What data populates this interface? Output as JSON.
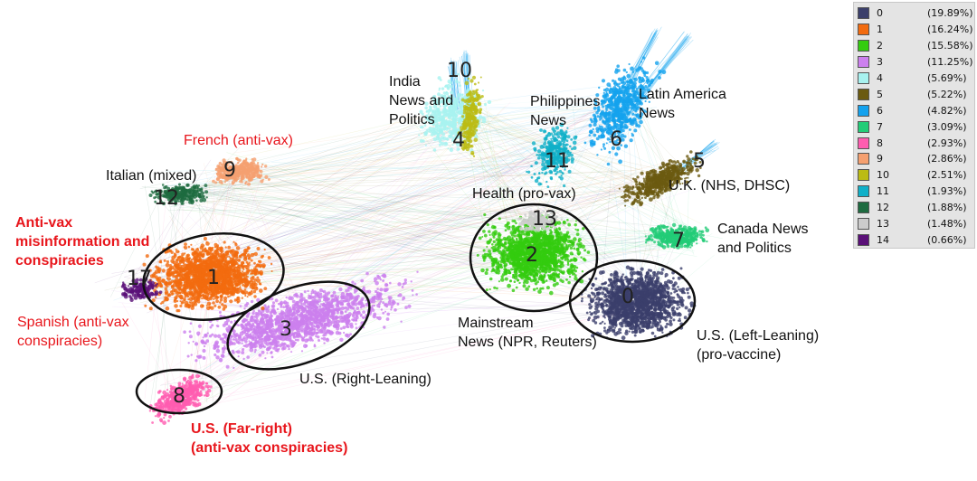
{
  "legend": [
    {
      "key": "0",
      "percent": "(19.89%)",
      "color": "#3b3f6b"
    },
    {
      "key": "1",
      "percent": "(16.24%)",
      "color": "#f26b0f"
    },
    {
      "key": "2",
      "percent": "(15.58%)",
      "color": "#33cc0f"
    },
    {
      "key": "3",
      "percent": "(11.25%)",
      "color": "#cc80ee"
    },
    {
      "key": "4",
      "percent": "(5.69%)",
      "color": "#a8f2f0"
    },
    {
      "key": "5",
      "percent": "(5.22%)",
      "color": "#6b5a10"
    },
    {
      "key": "6",
      "percent": "(4.82%)",
      "color": "#14a2ee"
    },
    {
      "key": "7",
      "percent": "(3.09%)",
      "color": "#22cc77"
    },
    {
      "key": "8",
      "percent": "(2.93%)",
      "color": "#ff5cb0"
    },
    {
      "key": "9",
      "percent": "(2.86%)",
      "color": "#f5a070"
    },
    {
      "key": "10",
      "percent": "(2.51%)",
      "color": "#bbbb14"
    },
    {
      "key": "11",
      "percent": "(1.93%)",
      "color": "#10b0c8"
    },
    {
      "key": "12",
      "percent": "(1.88%)",
      "color": "#1e6b40"
    },
    {
      "key": "13",
      "percent": "(1.48%)",
      "color": "#cccccc"
    },
    {
      "key": "14",
      "percent": "(0.66%)",
      "color": "#5a1078"
    }
  ],
  "cluster_numbers": [
    "0",
    "1",
    "2",
    "3",
    "4",
    "5",
    "6",
    "7",
    "8",
    "9",
    "10",
    "11",
    "12",
    "13",
    "17"
  ],
  "labels": {
    "india": "India\nNews and\nPolitics",
    "philippines": "Philippines\nNews",
    "latam": "Latin America\nNews",
    "french": "French (anti-vax)",
    "italian": "Italian (mixed)",
    "health": "Health (pro-vax)",
    "uk": "U.K. (NHS, DHSC)",
    "antivax": "Anti-vax\nmisinformation and\nconspiracies",
    "canada": "Canada News\nand Politics",
    "spanish": "Spanish (anti-vax\nconspiracies)",
    "mainstream": "Mainstream\nNews (NPR, Reuters)",
    "us_left": "U.S. (Left-Leaning)\n(pro-vaccine)",
    "us_right": "U.S. (Right-Leaning)",
    "us_far_right": "U.S. (Far-right)\n(anti-vax conspiracies)"
  }
}
